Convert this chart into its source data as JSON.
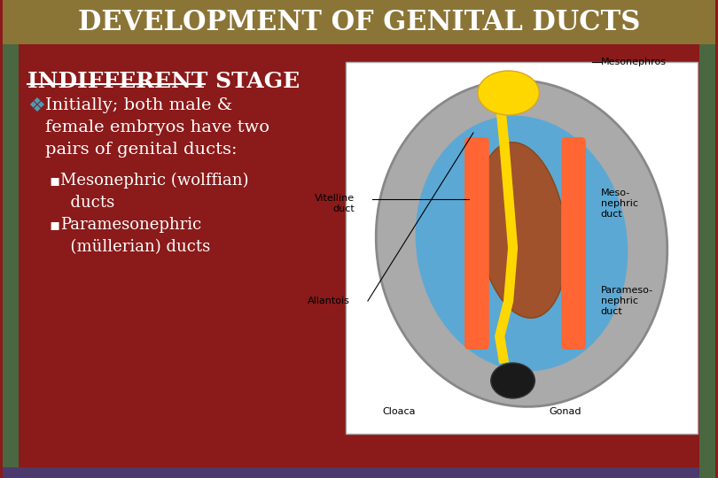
{
  "title": "DEVELOPMENT OF GENITAL DUCTS",
  "title_bg_color": "#8B7536",
  "title_text_color": "#FFFFFF",
  "main_bg_color": "#8B1A1A",
  "left_strip_color": "#4A6741",
  "bottom_strip_color": "#4B3A6B",
  "slide_bg_color": "#8B1A1A",
  "heading": "INDIFFERENT STAGE",
  "heading_color": "#FFFFFF",
  "bullet_symbol": "❖",
  "bullet_color": "#4A9DB5",
  "bullet_text": "Initially; both male &\nfemale embryos have two\npairs of genital ducts:",
  "sub_bullets": [
    "Mesonephric (wolffian)\n  ducts",
    "Paramesonephric\n  (müllerian) ducts"
  ],
  "text_color": "#FFFFFF",
  "font_size_title": 22,
  "font_size_heading": 18,
  "font_size_body": 14,
  "font_size_sub": 13
}
